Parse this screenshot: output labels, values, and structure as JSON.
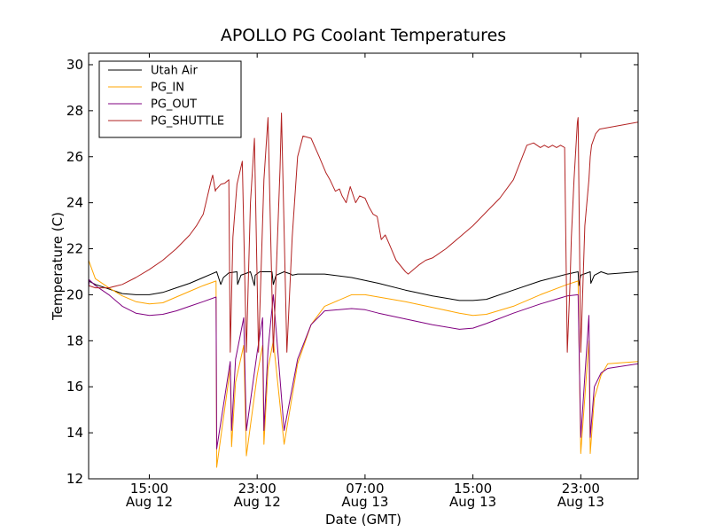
{
  "chart_data": {
    "type": "line",
    "title": "APOLLO PG Coolant Temperatures",
    "xlabel": "Date (GMT)",
    "ylabel": "Temperature (C)",
    "x_unit": "hours since Aug 12 00:00 GMT",
    "xlim": [
      10.5,
      51.25
    ],
    "ylim": [
      12,
      30.5
    ],
    "yticks": [
      12,
      14,
      16,
      18,
      20,
      22,
      24,
      26,
      28,
      30
    ],
    "xticks": [
      {
        "x": 15,
        "time": "15:00",
        "date": "Aug 12"
      },
      {
        "x": 23,
        "time": "23:00",
        "date": "Aug 12"
      },
      {
        "x": 31,
        "time": "07:00",
        "date": "Aug 13"
      },
      {
        "x": 39,
        "time": "15:00",
        "date": "Aug 13"
      },
      {
        "x": 47,
        "time": "23:00",
        "date": "Aug 13"
      }
    ],
    "legend_position": "top-left",
    "series": [
      {
        "name": "Utah Air",
        "color": "#000000",
        "x": [
          10.5,
          11.0,
          12.0,
          13.0,
          14.0,
          15.0,
          16.0,
          17.0,
          18.0,
          19.0,
          19.6,
          20.0,
          20.3,
          20.5,
          20.9,
          21.5,
          21.55,
          21.8,
          22.5,
          22.8,
          22.85,
          23.2,
          24.1,
          24.2,
          24.4,
          25.0,
          25.5,
          25.6,
          26.0,
          28.0,
          30.0,
          32.0,
          34.0,
          36.0,
          38.0,
          39.0,
          40.0,
          42.0,
          44.0,
          46.0,
          46.8,
          46.85,
          47.0,
          47.7,
          47.75,
          48.0,
          48.5,
          49.0,
          51.25
        ],
        "y": [
          20.6,
          20.45,
          20.25,
          20.05,
          20.0,
          20.0,
          20.1,
          20.3,
          20.5,
          20.75,
          20.9,
          21.0,
          20.45,
          20.75,
          20.95,
          21.0,
          20.45,
          20.85,
          21.0,
          20.4,
          20.85,
          21.0,
          21.0,
          20.45,
          20.85,
          21.0,
          20.9,
          20.85,
          20.9,
          20.9,
          20.75,
          20.5,
          20.2,
          19.95,
          19.75,
          19.75,
          19.8,
          20.2,
          20.6,
          20.9,
          21.0,
          20.4,
          20.85,
          21.0,
          20.5,
          20.85,
          21.0,
          20.9,
          21.0
        ]
      },
      {
        "name": "PG_IN",
        "color": "#ffa500",
        "x": [
          10.5,
          11.0,
          12.0,
          13.0,
          14.0,
          15.0,
          16.0,
          17.0,
          18.0,
          19.0,
          19.95,
          20.0,
          21.0,
          21.1,
          21.4,
          22.0,
          22.2,
          23.0,
          23.4,
          23.5,
          23.8,
          24.2,
          25.0,
          26.0,
          27.0,
          28.0,
          30.0,
          31.0,
          32.0,
          34.0,
          36.0,
          38.0,
          39.0,
          40.0,
          42.0,
          44.0,
          46.0,
          46.8,
          47.0,
          47.6,
          47.7,
          48.0,
          48.5,
          49.0,
          51.25
        ],
        "y": [
          21.5,
          20.7,
          20.3,
          19.95,
          19.7,
          19.6,
          19.65,
          19.9,
          20.15,
          20.4,
          20.6,
          12.5,
          16.8,
          13.4,
          16.2,
          17.8,
          13.0,
          16.5,
          17.8,
          13.5,
          16.8,
          18.0,
          13.5,
          17.0,
          18.7,
          19.5,
          20.0,
          20.0,
          19.9,
          19.7,
          19.45,
          19.2,
          19.1,
          19.15,
          19.5,
          20.0,
          20.45,
          20.6,
          13.1,
          18.0,
          13.1,
          15.5,
          16.5,
          17.0,
          17.1
        ]
      },
      {
        "name": "PG_OUT",
        "color": "#800080",
        "x": [
          10.5,
          10.55,
          11.0,
          12.0,
          13.0,
          14.0,
          15.0,
          16.0,
          17.0,
          18.0,
          19.0,
          19.95,
          20.0,
          21.0,
          21.1,
          21.4,
          22.0,
          22.2,
          23.0,
          23.4,
          23.5,
          23.8,
          24.2,
          25.0,
          26.0,
          27.0,
          28.0,
          30.0,
          31.0,
          32.0,
          34.0,
          36.0,
          38.0,
          39.0,
          40.0,
          42.0,
          44.0,
          46.0,
          46.8,
          47.0,
          47.6,
          47.7,
          48.0,
          48.5,
          49.0,
          51.25
        ],
        "y": [
          20.3,
          20.65,
          20.4,
          20.0,
          19.5,
          19.2,
          19.1,
          19.15,
          19.3,
          19.5,
          19.7,
          19.9,
          13.3,
          17.1,
          14.1,
          17.2,
          19.0,
          14.1,
          17.5,
          19.0,
          14.1,
          17.6,
          20.0,
          14.1,
          17.2,
          18.7,
          19.3,
          19.4,
          19.35,
          19.2,
          18.95,
          18.7,
          18.5,
          18.55,
          18.75,
          19.2,
          19.6,
          19.95,
          20.0,
          13.8,
          19.1,
          13.8,
          16.0,
          16.6,
          16.8,
          17.0
        ]
      },
      {
        "name": "PG_SHUTTLE",
        "color": "#b22222",
        "x": [
          10.5,
          11.0,
          12.0,
          13.0,
          14.0,
          15.0,
          16.0,
          17.0,
          18.0,
          18.5,
          19.0,
          19.2,
          19.4,
          19.6,
          19.7,
          19.9,
          19.95,
          20.0,
          20.3,
          20.6,
          20.9,
          21.0,
          21.2,
          21.5,
          21.9,
          22.2,
          22.5,
          22.8,
          23.1,
          23.5,
          23.8,
          24.2,
          24.7,
          24.8,
          25.2,
          25.6,
          26.0,
          26.4,
          27.0,
          27.6,
          28.1,
          28.4,
          28.8,
          29.1,
          29.3,
          29.6,
          29.9,
          30.3,
          30.6,
          31.0,
          31.3,
          31.6,
          31.9,
          32.2,
          32.5,
          32.8,
          33.3,
          34.0,
          34.2,
          34.6,
          35.0,
          35.5,
          36.0,
          37.0,
          38.0,
          39.0,
          40.0,
          41.0,
          42.0,
          43.0,
          43.5,
          44.0,
          44.3,
          44.6,
          44.9,
          45.2,
          45.5,
          45.8,
          46.0,
          46.2,
          46.3,
          46.5,
          46.75,
          46.8,
          47.0,
          47.3,
          47.6,
          47.7,
          47.8,
          48.1,
          48.4,
          51.25
        ],
        "y": [
          20.4,
          20.3,
          20.3,
          20.45,
          20.75,
          21.1,
          21.5,
          22.0,
          22.6,
          23.0,
          23.5,
          24.0,
          24.5,
          25.0,
          25.2,
          24.5,
          24.6,
          24.6,
          24.8,
          24.85,
          25.0,
          17.5,
          22.5,
          24.8,
          25.8,
          17.5,
          24.0,
          26.8,
          17.5,
          25.0,
          27.7,
          17.5,
          25.5,
          27.9,
          17.5,
          22.5,
          26.0,
          26.9,
          26.8,
          26.0,
          25.3,
          25.0,
          24.5,
          24.6,
          24.3,
          24.0,
          24.7,
          24.0,
          24.3,
          24.2,
          23.8,
          23.5,
          23.4,
          22.4,
          22.6,
          22.2,
          21.5,
          21.0,
          20.9,
          21.1,
          21.3,
          21.5,
          21.6,
          22.0,
          22.5,
          23.0,
          23.6,
          24.2,
          25.0,
          26.5,
          26.6,
          26.4,
          26.5,
          26.4,
          26.5,
          26.4,
          26.5,
          26.4,
          17.5,
          20.5,
          22.5,
          25.0,
          27.5,
          27.7,
          17.5,
          23.0,
          25.0,
          26.0,
          26.5,
          27.0,
          27.2,
          27.5
        ]
      }
    ]
  }
}
